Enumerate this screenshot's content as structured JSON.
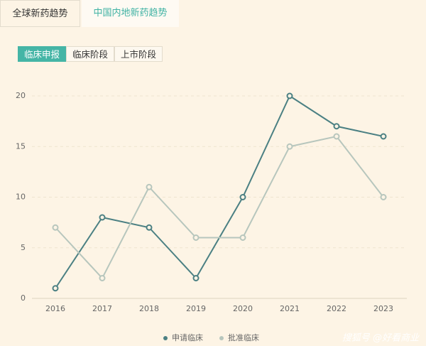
{
  "tabs": [
    "全球新药趋势",
    "中国内地新药趋势"
  ],
  "subtabs": [
    "临床申报",
    "临床阶段",
    "上市阶段"
  ],
  "watermark": "搜狐号 @好看商业",
  "chart_data": {
    "type": "line",
    "categories": [
      "2016",
      "2017",
      "2018",
      "2019",
      "2020",
      "2021",
      "2022",
      "2023"
    ],
    "series": [
      {
        "name": "申请临床",
        "color": "#4b8083",
        "values": [
          1,
          8,
          7,
          2,
          10,
          20,
          17,
          16
        ]
      },
      {
        "name": "批准临床",
        "color": "#b7c6bd",
        "values": [
          7,
          2,
          11,
          6,
          6,
          15,
          16,
          10
        ]
      }
    ],
    "ylim": [
      0,
      20
    ],
    "yticks": [
      0,
      5,
      10,
      15,
      20
    ],
    "grid": true
  }
}
